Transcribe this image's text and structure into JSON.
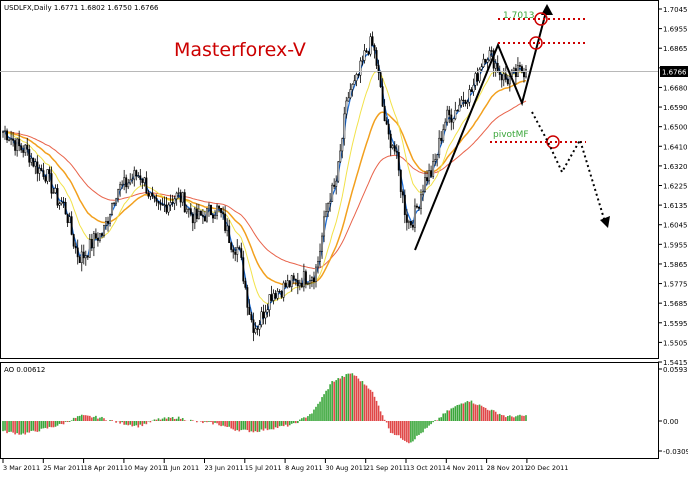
{
  "chart_header": {
    "symbol_info": "USDLFX,Daily  1.6771 1.6802 1.6750 1.6766"
  },
  "watermark": "Masterforex-V",
  "annotations": {
    "target_label": "1.7013",
    "pivot_label": "pivotMF"
  },
  "current_price": "1.6766",
  "colors": {
    "background": "#ffffff",
    "candles": "#000000",
    "ema_fast": "#1e6fd8",
    "ma_yellow": "#f2e24a",
    "ma_orange": "#f2a01e",
    "ma_red": "#e8634a",
    "ao_up": "#3aa63a",
    "ao_down": "#e04848",
    "watermark": "#cc0000",
    "dotted": "#cc0000"
  },
  "price_axis": {
    "ticks": [
      "1.7045",
      "1.6955",
      "1.6865",
      "1.6770",
      "1.6680",
      "1.6590",
      "1.6500",
      "1.6410",
      "1.6320",
      "1.6225",
      "1.6135",
      "1.6045",
      "1.5955",
      "1.5865",
      "1.5775",
      "1.5685",
      "1.5595",
      "1.5505",
      "1.5415"
    ]
  },
  "ao_panel": {
    "label": "AO 0.00612",
    "ticks": [
      "0.0593",
      "0.00",
      "-0.03096"
    ]
  },
  "time_axis": {
    "labels": [
      "3 Mar 2011",
      "25 Mar 2011",
      "18 Apr 2011",
      "10 May 2011",
      "1 Jun 2011",
      "23 Jun 2011",
      "15 Jul 2011",
      "8 Aug 2011",
      "30 Aug 2011",
      "21 Sep 2011",
      "13 Oct 2011",
      "4 Nov 2011",
      "28 Nov 2011",
      "20 Dec 2011"
    ]
  },
  "chart_data": {
    "type": "candlestick",
    "symbol": "USDLFX",
    "timeframe": "Daily",
    "last_bar": {
      "open": 1.6771,
      "high": 1.6802,
      "low": 1.675,
      "close": 1.6766
    },
    "ylim": [
      1.5415,
      1.7045
    ],
    "close_path": [
      [
        1.648,
        "3 Mar 2011"
      ],
      [
        1.64,
        ""
      ],
      [
        1.63,
        "25 Mar 2011"
      ],
      [
        1.615,
        ""
      ],
      [
        1.59,
        "18 Apr 2011"
      ],
      [
        1.6,
        ""
      ],
      [
        1.622,
        "10 May 2011"
      ],
      [
        1.628,
        ""
      ],
      [
        1.612,
        "1 Jun 2011"
      ],
      [
        1.618,
        ""
      ],
      [
        1.608,
        "23 Jun 2011"
      ],
      [
        1.612,
        ""
      ],
      [
        1.595,
        "15 Jul 2011"
      ],
      [
        1.558,
        ""
      ],
      [
        1.574,
        "8 Aug 2011"
      ],
      [
        1.578,
        ""
      ],
      [
        1.582,
        "30 Aug 2011"
      ],
      [
        1.62,
        ""
      ],
      [
        1.668,
        "21 Sep 2011"
      ],
      [
        1.688,
        ""
      ],
      [
        1.644,
        "13 Oct 2011"
      ],
      [
        1.606,
        ""
      ],
      [
        1.628,
        "4 Nov 2011"
      ],
      [
        1.655,
        ""
      ],
      [
        1.665,
        "28 Nov 2011"
      ],
      [
        1.684,
        ""
      ],
      [
        1.672,
        "20 Dec 2011"
      ],
      [
        1.6766,
        ""
      ]
    ],
    "ao_values": [
      -0.012,
      -0.015,
      -0.01,
      -0.004,
      0.006,
      0.004,
      -0.002,
      -0.006,
      0.002,
      0.004,
      -0.001,
      -0.003,
      -0.01,
      -0.012,
      -0.008,
      -0.004,
      0.01,
      0.045,
      0.055,
      0.036,
      -0.012,
      -0.025,
      -0.006,
      0.012,
      0.024,
      0.014,
      0.005,
      0.006
    ]
  }
}
